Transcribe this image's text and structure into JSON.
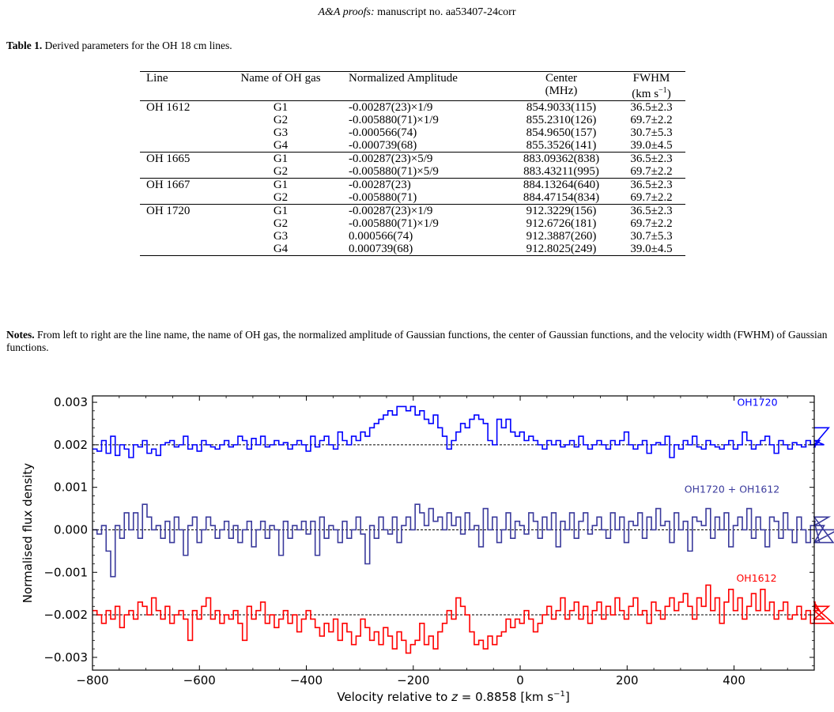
{
  "header": {
    "journal": "A&A proofs:",
    "manuscript": "manuscript no. aa53407-24corr"
  },
  "table": {
    "caption_label": "Table 1.",
    "caption_text": "Derived parameters for the OH 18 cm lines.",
    "columns": {
      "line": "Line",
      "gas": "Name of OH gas",
      "amp": "Normalized Amplitude",
      "center": "Center",
      "center_unit": "(MHz)",
      "fwhm": "FWHM",
      "fwhm_unit_pre": "(km s",
      "fwhm_unit_exp": "−1",
      "fwhm_unit_post": ")"
    },
    "rows": [
      {
        "line": "OH 1612",
        "gas": "G1",
        "amp": "-0.00287(23)×1/9",
        "center": "854.9033(115)",
        "fwhm": "36.5±2.3"
      },
      {
        "line": "",
        "gas": "G2",
        "amp": "-0.005880(71)×1/9",
        "center": "855.2310(126)",
        "fwhm": "69.7±2.2"
      },
      {
        "line": "",
        "gas": "G3",
        "amp": "-0.000566(74)",
        "center": "854.9650(157)",
        "fwhm": "30.7±5.3"
      },
      {
        "line": "",
        "gas": "G4",
        "amp": "-0.000739(68)",
        "center": "855.3526(141)",
        "fwhm": "39.0±4.5"
      },
      {
        "line": "OH 1665",
        "gas": "G1",
        "amp": "-0.00287(23)×5/9",
        "center": "883.09362(838)",
        "fwhm": "36.5±2.3"
      },
      {
        "line": "",
        "gas": "G2",
        "amp": "-0.005880(71)×5/9",
        "center": "883.43211(995)",
        "fwhm": "69.7±2.2"
      },
      {
        "line": "OH 1667",
        "gas": "G1",
        "amp": "-0.00287(23)",
        "center": "884.13264(640)",
        "fwhm": "36.5±2.3"
      },
      {
        "line": "",
        "gas": "G2",
        "amp": "-0.005880(71)",
        "center": "884.47154(834)",
        "fwhm": "69.7±2.2"
      },
      {
        "line": "OH 1720",
        "gas": "G1",
        "amp": "-0.00287(23)×1/9",
        "center": "912.3229(156)",
        "fwhm": "36.5±2.3"
      },
      {
        "line": "",
        "gas": "G2",
        "amp": "-0.005880(71)×1/9",
        "center": "912.6726(181)",
        "fwhm": "69.7±2.2"
      },
      {
        "line": "",
        "gas": "G3",
        "amp": "0.000566(74)",
        "center": "912.3887(260)",
        "fwhm": "30.7±5.3"
      },
      {
        "line": "",
        "gas": "G4",
        "amp": "0.000739(68)",
        "center": "912.8025(249)",
        "fwhm": "39.0±4.5"
      }
    ]
  },
  "notes": {
    "label": "Notes.",
    "text": "From left to right are the line name, the name of OH gas, the normalized amplitude of Gaussian functions, the center of Gaussian functions, and the velocity width (FWHM) of Gaussian functions."
  },
  "chart_data": {
    "type": "line",
    "xlabel_pre": "Velocity relative to ",
    "xlabel_z": "z",
    "xlabel_eq": " = 0.8858 [km s",
    "xlabel_exp": "−1",
    "xlabel_post": "]",
    "ylabel": "Normalised flux density",
    "xlim": [
      -800,
      550
    ],
    "ylim": [
      -0.0033,
      0.00315
    ],
    "x_ticks": [
      -800,
      -600,
      -400,
      -200,
      0,
      200,
      400
    ],
    "x_tick_labels": [
      "−800",
      "−600",
      "−400",
      "−200",
      "0",
      "200",
      "400"
    ],
    "y_ticks": [
      0.003,
      0.002,
      0.001,
      0.0,
      -0.001,
      -0.002,
      -0.003
    ],
    "y_tick_labels": [
      "0.003",
      "0.002",
      "0.001",
      "0.000",
      "−0.001",
      "−0.002",
      "−0.003"
    ],
    "baselines": [
      0.002,
      0.0,
      -0.002
    ],
    "grid": false,
    "series": [
      {
        "name": "OH1720",
        "color": "#0000ff",
        "style": "steps",
        "x_start": -800,
        "x_step": 8.5,
        "baseline": 0.002,
        "values": [
          0.0019,
          0.00185,
          0.0021,
          0.0018,
          0.0022,
          0.00175,
          0.002,
          0.0019,
          0.0017,
          0.002,
          0.00195,
          0.0021,
          0.0018,
          0.0019,
          0.00175,
          0.002,
          0.00205,
          0.0021,
          0.00195,
          0.002,
          0.0022,
          0.0019,
          0.002,
          0.00185,
          0.0021,
          0.002,
          0.00195,
          0.0019,
          0.002,
          0.0021,
          0.00195,
          0.002,
          0.0022,
          0.0021,
          0.0019,
          0.00215,
          0.002,
          0.0022,
          0.00195,
          0.002,
          0.0021,
          0.002,
          0.00205,
          0.0019,
          0.002,
          0.0021,
          0.002,
          0.00185,
          0.0022,
          0.00195,
          0.0021,
          0.0022,
          0.002,
          0.0019,
          0.0023,
          0.0021,
          0.002,
          0.0022,
          0.0021,
          0.0023,
          0.0022,
          0.0024,
          0.0025,
          0.0026,
          0.0027,
          0.0028,
          0.0027,
          0.0029,
          0.0029,
          0.0028,
          0.0029,
          0.0027,
          0.0028,
          0.0026,
          0.0025,
          0.0027,
          0.0024,
          0.0022,
          0.0019,
          0.0021,
          0.0023,
          0.0025,
          0.0024,
          0.0026,
          0.0027,
          0.0026,
          0.0025,
          0.0021,
          0.002,
          0.0026,
          0.0024,
          0.0026,
          0.0023,
          0.0022,
          0.0023,
          0.0021,
          0.0022,
          0.0021,
          0.002,
          0.0019,
          0.0021,
          0.002,
          0.0021,
          0.00195,
          0.002,
          0.0021,
          0.00195,
          0.0022,
          0.002,
          0.0019,
          0.002,
          0.0021,
          0.002,
          0.0019,
          0.0021,
          0.002,
          0.0021,
          0.0023,
          0.002,
          0.0019,
          0.002,
          0.0021,
          0.0018,
          0.002,
          0.00205,
          0.002,
          0.0022,
          0.0017,
          0.002,
          0.0019,
          0.0021,
          0.002,
          0.0022,
          0.00195,
          0.0019,
          0.0021,
          0.002,
          0.00195,
          0.0019,
          0.002,
          0.0021,
          0.0019,
          0.002,
          0.0023,
          0.0021,
          0.0019,
          0.002,
          0.0021,
          0.0022,
          0.002,
          0.0018,
          0.0021,
          0.002,
          0.0019,
          0.00205,
          0.002,
          0.00195,
          0.0021,
          0.002,
          0.00195,
          0.0021,
          0.002,
          0.0024
        ]
      },
      {
        "name": "OH1720 + OH1612",
        "color": "#3a3a9c",
        "style": "steps",
        "x_start": -800,
        "x_step": 8.5,
        "baseline": 0.0,
        "values": [
          0.0,
          -0.0001,
          0.0001,
          -0.0005,
          -0.0011,
          0.0001,
          -0.0002,
          0.0004,
          0.0,
          0.0004,
          -0.0002,
          0.0006,
          0.0003,
          0.0,
          0.0001,
          -0.0002,
          0.0002,
          -0.0003,
          0.0003,
          0.0,
          -0.0006,
          0.0001,
          0.0003,
          -0.0003,
          0.0,
          0.0003,
          0.0001,
          -0.0002,
          0.0,
          0.0002,
          -0.0002,
          0.0001,
          -0.0003,
          0.0,
          0.0002,
          -0.0004,
          0.0,
          0.0002,
          -0.0002,
          0.0001,
          0.0,
          -0.0006,
          0.0002,
          -0.0002,
          0.0001,
          0.0,
          0.0002,
          -0.0001,
          0.0002,
          -0.0006,
          0.0003,
          -0.0002,
          0.0001,
          0.0,
          -0.0003,
          0.0002,
          -0.0002,
          0.0,
          0.0003,
          -0.0001,
          -0.0008,
          0.0001,
          -0.0002,
          0.0003,
          0.0,
          -0.0001,
          0.0003,
          -0.0003,
          0.0001,
          0.0003,
          0.0,
          0.0006,
          0.0004,
          0.0001,
          0.0005,
          0.0002,
          0.0003,
          0.0,
          0.0004,
          0.0001,
          0.0003,
          -0.0001,
          0.0004,
          0.0,
          0.0001,
          -0.0004,
          0.0005,
          0.0,
          0.0003,
          -0.0003,
          0.0,
          0.0004,
          -0.0002,
          0.0002,
          0.0001,
          -0.0001,
          0.0004,
          0.0002,
          -0.0002,
          0.0003,
          0.0,
          0.0004,
          -0.0004,
          0.0002,
          0.0,
          0.0004,
          -0.0002,
          0.0002,
          0.0004,
          -0.0001,
          0.0001,
          0.0003,
          0.0,
          -0.0002,
          0.0004,
          0.0,
          0.0003,
          -0.0003,
          0.0002,
          0.0001,
          0.0004,
          -0.0002,
          0.0003,
          0.0,
          0.0005,
          0.0001,
          0.0002,
          -0.0003,
          0.0004,
          0.0,
          0.0002,
          -0.0005,
          0.0003,
          0.0002,
          0.0001,
          0.0005,
          -0.0002,
          0.0003,
          0.0,
          0.0004,
          -0.0004,
          0.0001,
          0.0003,
          0.0,
          0.0005,
          -0.0002,
          0.0003,
          0.0,
          -0.0004,
          0.0003,
          0.0002,
          -0.0002,
          0.0004,
          0.0,
          -0.0003,
          0.0003,
          0.0,
          -0.0003,
          0.0001,
          0.0002,
          -0.0003,
          0.0001,
          0.0003,
          -0.0003,
          0.0
        ]
      },
      {
        "name": "OH1612",
        "color": "#ff0000",
        "style": "steps",
        "x_start": -800,
        "x_step": 8.5,
        "baseline": -0.002,
        "values": [
          -0.0019,
          -0.002,
          -0.0022,
          -0.0019,
          -0.0021,
          -0.0018,
          -0.0023,
          -0.002,
          -0.0019,
          -0.0021,
          -0.0017,
          -0.0018,
          -0.002,
          -0.0016,
          -0.0019,
          -0.0021,
          -0.0018,
          -0.0022,
          -0.002,
          -0.0019,
          -0.0021,
          -0.0026,
          -0.0019,
          -0.0021,
          -0.0018,
          -0.0016,
          -0.0021,
          -0.0019,
          -0.0022,
          -0.002,
          -0.0021,
          -0.0019,
          -0.0022,
          -0.0026,
          -0.0018,
          -0.0021,
          -0.0019,
          -0.0017,
          -0.0022,
          -0.002,
          -0.0023,
          -0.0021,
          -0.0019,
          -0.0022,
          -0.002,
          -0.0024,
          -0.0021,
          -0.0019,
          -0.0021,
          -0.0023,
          -0.0025,
          -0.0022,
          -0.0024,
          -0.0021,
          -0.0026,
          -0.0022,
          -0.0024,
          -0.0027,
          -0.0025,
          -0.0021,
          -0.0023,
          -0.0026,
          -0.0024,
          -0.0027,
          -0.0023,
          -0.0025,
          -0.0028,
          -0.0024,
          -0.0026,
          -0.0029,
          -0.0027,
          -0.0026,
          -0.0022,
          -0.0027,
          -0.0025,
          -0.0028,
          -0.0024,
          -0.0022,
          -0.0019,
          -0.0021,
          -0.0016,
          -0.0018,
          -0.002,
          -0.0024,
          -0.0027,
          -0.0026,
          -0.0028,
          -0.0025,
          -0.0027,
          -0.0025,
          -0.0024,
          -0.0021,
          -0.0023,
          -0.0021,
          -0.0022,
          -0.0019,
          -0.0021,
          -0.0024,
          -0.0022,
          -0.002,
          -0.0018,
          -0.0021,
          -0.0019,
          -0.0016,
          -0.0021,
          -0.0019,
          -0.0017,
          -0.0021,
          -0.0018,
          -0.0022,
          -0.0019,
          -0.0017,
          -0.0021,
          -0.0018,
          -0.002,
          -0.0016,
          -0.0019,
          -0.0021,
          -0.0018,
          -0.0016,
          -0.002,
          -0.0019,
          -0.0022,
          -0.0017,
          -0.0019,
          -0.0021,
          -0.0018,
          -0.0016,
          -0.0019,
          -0.0017,
          -0.0015,
          -0.0018,
          -0.0021,
          -0.0016,
          -0.0018,
          -0.0013,
          -0.0019,
          -0.0016,
          -0.0022,
          -0.0017,
          -0.0014,
          -0.0019,
          -0.0016,
          -0.0021,
          -0.0018,
          -0.0015,
          -0.0019,
          -0.0014,
          -0.0019,
          -0.0017,
          -0.0021,
          -0.0019,
          -0.0017,
          -0.0021,
          -0.002,
          -0.0018,
          -0.0021,
          -0.0019,
          -0.0022,
          -0.0017,
          -0.0019,
          -0.0021,
          -0.0018,
          -0.0022
        ]
      }
    ]
  }
}
